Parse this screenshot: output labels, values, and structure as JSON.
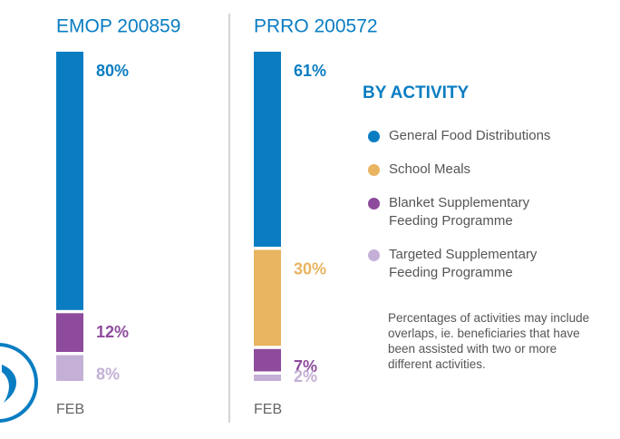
{
  "chart_data": [
    {
      "type": "stacked-bar",
      "title": "EMOP 200859",
      "categories": [
        "FEB"
      ],
      "series": [
        {
          "name": "General Food Distributions",
          "color": "#0a7dc2",
          "values": [
            80
          ],
          "value_labels": [
            "80%"
          ]
        },
        {
          "name": "Blanket Supplementary Feeding Programme",
          "color": "#8e4a9c",
          "values": [
            12
          ],
          "value_labels": [
            "12%"
          ]
        },
        {
          "name": "Targeted Supplementary Feeding Programme",
          "color": "#c4b0d6",
          "values": [
            8
          ],
          "value_labels": [
            "8%"
          ]
        }
      ]
    },
    {
      "type": "stacked-bar",
      "title": "PRRO 200572",
      "categories": [
        "FEB"
      ],
      "series": [
        {
          "name": "General Food Distributions",
          "color": "#0a7dc2",
          "values": [
            61
          ],
          "value_labels": [
            "61%"
          ]
        },
        {
          "name": "School Meals",
          "color": "#e8b460",
          "values": [
            30
          ],
          "value_labels": [
            "30%"
          ]
        },
        {
          "name": "Blanket Supplementary Feeding Programme",
          "color": "#8e4a9c",
          "values": [
            7
          ],
          "value_labels": [
            "7%"
          ]
        },
        {
          "name": "Targeted Supplementary Feeding Programme",
          "color": "#c4b0d6",
          "values": [
            2
          ],
          "value_labels": [
            "2%"
          ]
        }
      ]
    }
  ],
  "legend": {
    "title": "BY ACTIVITY"
  },
  "note": "Percentages of activities may include overlaps, ie. beneficiaries that have been assisted with two or more different activities."
}
